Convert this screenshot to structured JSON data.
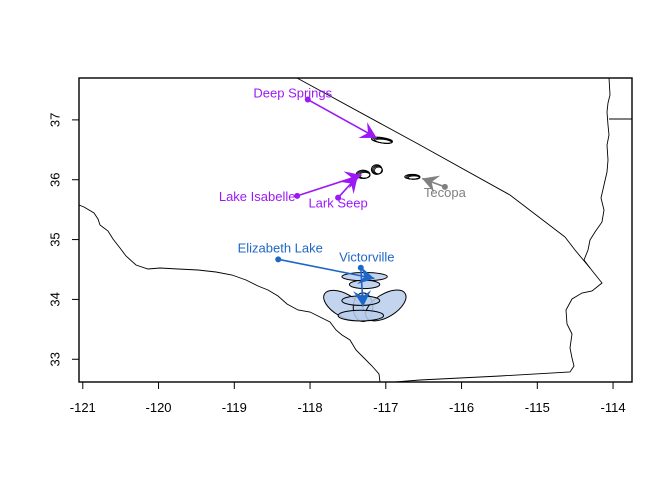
{
  "plot": {
    "x_ticks": [
      "-121",
      "-120",
      "-119",
      "-118",
      "-117",
      "-116",
      "-115",
      "-114"
    ],
    "y_ticks": [
      "33",
      "34",
      "35",
      "36",
      "37"
    ],
    "xlim": [
      -121.05,
      -113.75
    ],
    "ylim": [
      32.62,
      37.7
    ]
  },
  "colors": {
    "purple": "#9b19f5",
    "blue": "#1f67c7",
    "gray": "#808080",
    "ellipse_fill": "#b8cdec",
    "border": "#000000"
  },
  "sites": [
    {
      "name": "Deep Springs",
      "lon": -118.03,
      "lat": 37.34,
      "color": "purple"
    },
    {
      "name": "Lake Isabelle",
      "lon": -118.17,
      "lat": 35.73,
      "color": "purple"
    },
    {
      "name": "Lark Seep",
      "lon": -117.63,
      "lat": 35.7,
      "color": "purple"
    },
    {
      "name": "Elizabeth Lake",
      "lon": -118.42,
      "lat": 34.67,
      "color": "blue"
    },
    {
      "name": "Victorville",
      "lon": -117.33,
      "lat": 34.53,
      "color": "blue"
    },
    {
      "name": "Tecopa",
      "lon": -116.22,
      "lat": 35.88,
      "color": "gray"
    }
  ],
  "flows": [
    {
      "from": [
        -118.03,
        37.34
      ],
      "to": [
        -117.12,
        36.7
      ],
      "color": "purple"
    },
    {
      "from": [
        -118.17,
        35.73
      ],
      "to": [
        -117.32,
        36.08
      ],
      "color": "purple"
    },
    {
      "from": [
        -117.63,
        35.7
      ],
      "to": [
        -117.37,
        36.06
      ],
      "color": "purple"
    },
    {
      "from": [
        -118.42,
        34.67
      ],
      "to": [
        -117.15,
        34.35
      ],
      "color": "blue"
    },
    {
      "from": [
        -117.33,
        34.53
      ],
      "to": [
        -117.3,
        33.88
      ],
      "color": "blue"
    },
    {
      "from": [
        -116.22,
        35.88
      ],
      "to": [
        -116.52,
        36.02
      ],
      "color": "gray"
    }
  ],
  "ellipses": [
    {
      "lon": -117.05,
      "lat": 36.66,
      "rx_deg": 0.14,
      "ry_deg": 0.045,
      "rot": 8,
      "fill": "none"
    },
    {
      "lon": -117.3,
      "lat": 36.09,
      "rx_deg": 0.09,
      "ry_deg": 0.07,
      "rot": 0,
      "fill": "none"
    },
    {
      "lon": -117.12,
      "lat": 36.17,
      "rx_deg": 0.07,
      "ry_deg": 0.08,
      "rot": 0,
      "fill": "none"
    },
    {
      "lon": -116.65,
      "lat": 36.05,
      "rx_deg": 0.1,
      "ry_deg": 0.04,
      "rot": 0,
      "fill": "none"
    },
    {
      "lon": -117.28,
      "lat": 34.38,
      "rx_deg": 0.3,
      "ry_deg": 0.07,
      "rot": 0,
      "fill": "ellipse_fill"
    },
    {
      "lon": -117.28,
      "lat": 34.25,
      "rx_deg": 0.2,
      "ry_deg": 0.07,
      "rot": 0,
      "fill": "ellipse_fill"
    },
    {
      "lon": -117.55,
      "lat": 33.9,
      "rx_deg": 0.3,
      "ry_deg": 0.19,
      "rot": 30,
      "fill": "ellipse_fill"
    },
    {
      "lon": -117.3,
      "lat": 33.87,
      "rx_deg": 0.13,
      "ry_deg": 0.24,
      "rot": 0,
      "fill": "ellipse_fill"
    },
    {
      "lon": -117.0,
      "lat": 33.9,
      "rx_deg": 0.3,
      "ry_deg": 0.19,
      "rot": -32,
      "fill": "ellipse_fill"
    },
    {
      "lon": -117.33,
      "lat": 33.98,
      "rx_deg": 0.25,
      "ry_deg": 0.08,
      "rot": 0,
      "fill": "ellipse_fill"
    },
    {
      "lon": -117.33,
      "lat": 33.73,
      "rx_deg": 0.3,
      "ry_deg": 0.09,
      "rot": 0,
      "fill": "ellipse_fill"
    }
  ]
}
